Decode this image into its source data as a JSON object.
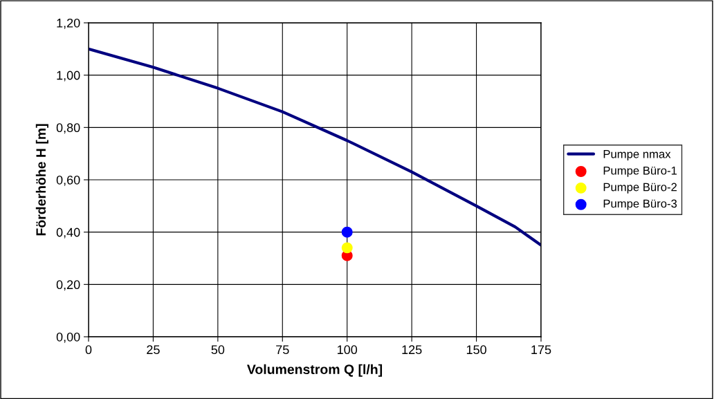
{
  "chart_data": {
    "type": "line",
    "xlabel": "Volumenstrom Q [l/h]",
    "ylabel": "Förderhöhe H [m]",
    "xlim": [
      0,
      175
    ],
    "xticks": [
      0,
      25,
      50,
      75,
      100,
      125,
      150,
      175
    ],
    "ylim": [
      0,
      1.2
    ],
    "yticks": [
      {
        "value": 0,
        "label": "0,00"
      },
      {
        "value": 0.2,
        "label": "0,20"
      },
      {
        "value": 0.4,
        "label": "0,40"
      },
      {
        "value": 0.6,
        "label": "0,60"
      },
      {
        "value": 0.8,
        "label": "0,80"
      },
      {
        "value": 1.0,
        "label": "1,00"
      },
      {
        "value": 1.2,
        "label": "1,20"
      }
    ],
    "grid": true,
    "legend": "right",
    "series": [
      {
        "name": "Pumpe nmax",
        "color": "#000080",
        "marker": "none",
        "x": [
          0,
          25,
          50,
          75,
          100,
          125,
          150,
          165,
          175
        ],
        "values": [
          1.1,
          1.03,
          0.95,
          0.86,
          0.75,
          0.63,
          0.5,
          0.42,
          0.35
        ]
      },
      {
        "name": "Pumpe Büro-1",
        "type": "scatter",
        "color": "#ff0000",
        "marker": "circle",
        "x": [
          100
        ],
        "values": [
          0.31
        ]
      },
      {
        "name": "Pumpe Büro-2",
        "type": "scatter",
        "color": "#ffff00",
        "marker": "circle",
        "x": [
          100
        ],
        "values": [
          0.34
        ]
      },
      {
        "name": "Pumpe Büro-3",
        "type": "scatter",
        "color": "#0000ff",
        "marker": "circle",
        "x": [
          100
        ],
        "values": [
          0.4
        ]
      }
    ]
  }
}
